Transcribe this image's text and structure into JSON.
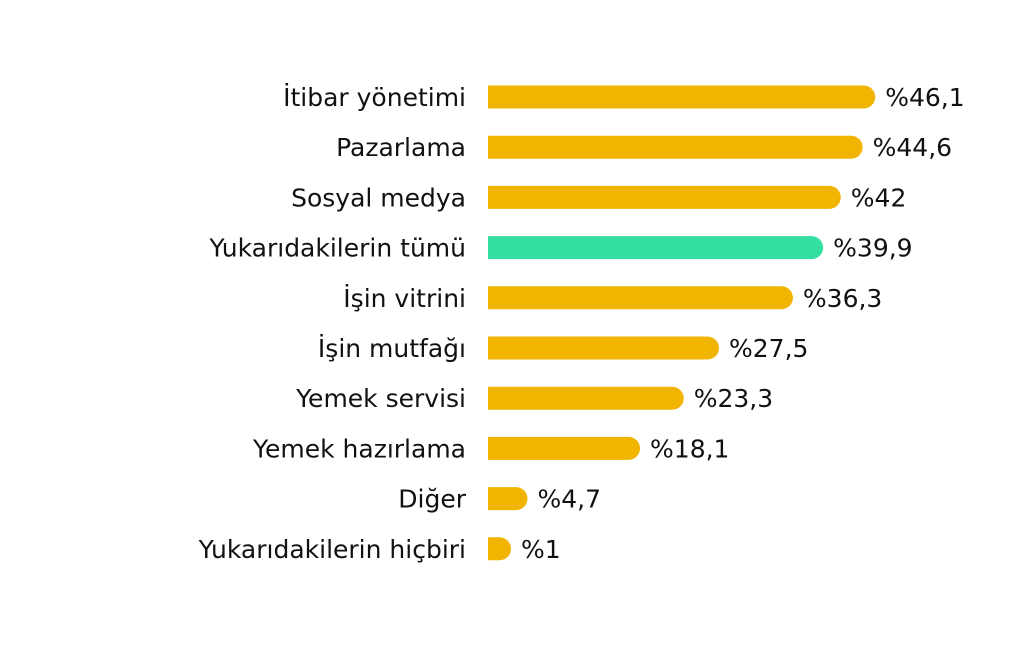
{
  "chart_data": {
    "type": "bar",
    "orientation": "horizontal",
    "categories": [
      "İtibar yönetimi",
      "Pazarlama",
      "Sosyal medya",
      "Yukarıdakilerin tümü",
      "İşin vitrini",
      "İşin mutfağı",
      "Yemek servisi",
      "Yemek hazırlama",
      "Diğer",
      "Yukarıdakilerin hiçbiri"
    ],
    "values": [
      46.1,
      44.6,
      42,
      39.9,
      36.3,
      27.5,
      23.3,
      18.1,
      4.7,
      1
    ],
    "value_labels": [
      "%46,1",
      "%44,6",
      "%42",
      "%39,9",
      "%36,3",
      "%27,5",
      "%23,3",
      "%18,1",
      "%4,7",
      "%1"
    ],
    "colors": {
      "default": "#F1B400",
      "highlight": "#34E0A1"
    },
    "highlight_category": "Yukarıdakilerin tümü",
    "title": "",
    "xlabel": "",
    "ylabel": "",
    "grid": false,
    "legend": "none"
  }
}
